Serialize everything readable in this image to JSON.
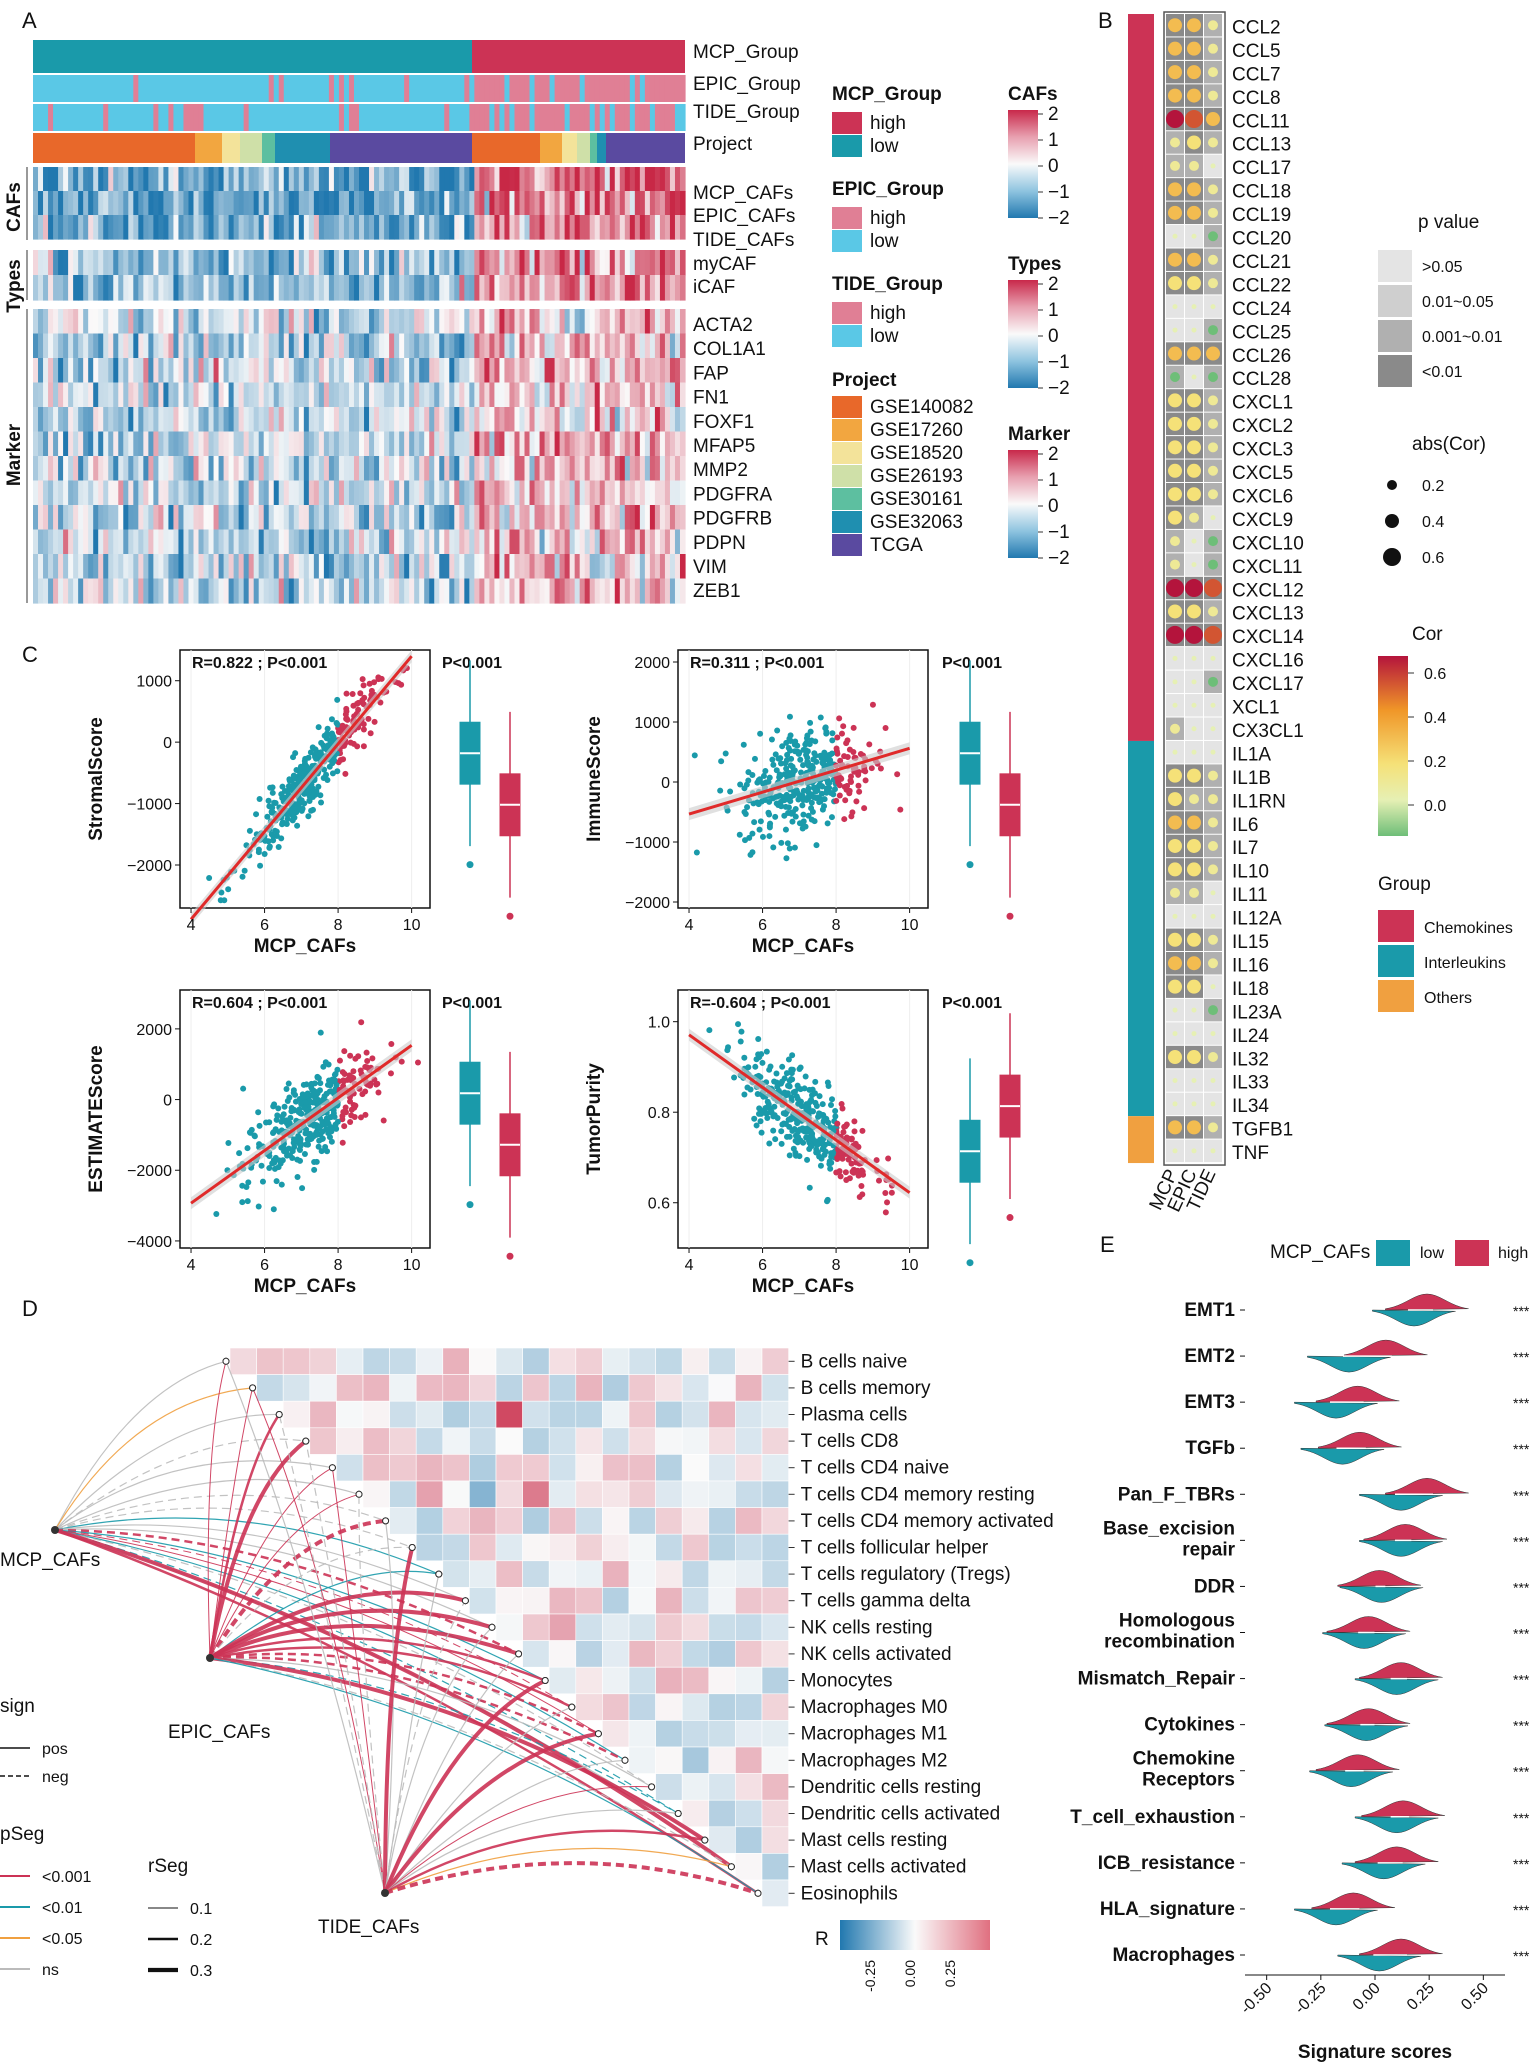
{
  "panels": {
    "a": "A",
    "b": "B",
    "c": "C",
    "d": "D",
    "e": "E"
  },
  "colors": {
    "high": "#cc3355",
    "low": "#1a9aaa",
    "light_high": "#e07f95",
    "light_low": "#5ac8e6",
    "grey": "#bbbbbb"
  },
  "heatmap_a": {
    "rows_top": [
      "MCP_Group",
      "EPIC_Group",
      "TIDE_Group",
      "Project"
    ],
    "group_caf": "CAFs",
    "rows_caf": [
      "MCP_CAFs",
      "EPIC_CAFs",
      "TIDE_CAFs"
    ],
    "group_types": "Types",
    "rows_types": [
      "myCAF",
      "iCAF"
    ],
    "group_marker": "Marker",
    "rows_marker": [
      "ACTA2",
      "COL1A1",
      "FAP",
      "FN1",
      "FOXF1",
      "MFAP5",
      "MMP2",
      "PDGFRA",
      "PDGFRB",
      "PDPN",
      "VIM",
      "ZEB1"
    ],
    "legend_mcp": {
      "title": "MCP_Group",
      "items": [
        "high",
        "low"
      ]
    },
    "legend_epic": {
      "title": "EPIC_Group",
      "items": [
        "high",
        "low"
      ]
    },
    "legend_tide": {
      "title": "TIDE_Group",
      "items": [
        "high",
        "low"
      ]
    },
    "legend_project": {
      "title": "Project",
      "items": [
        "GSE140082",
        "GSE17260",
        "GSE18520",
        "GSE26193",
        "GSE30161",
        "GSE32063",
        "TCGA"
      ],
      "colors": [
        "#e8682a",
        "#f2a640",
        "#f3e39a",
        "#cfe0a8",
        "#5dbfa0",
        "#1f8fb0",
        "#5a4aa0"
      ]
    },
    "scale_cafs": {
      "title": "CAFs",
      "ticks": [
        "2",
        "1",
        "0",
        "−1",
        "−2"
      ]
    },
    "scale_types": {
      "title": "Types",
      "ticks": [
        "2",
        "1",
        "0",
        "−1",
        "−2"
      ]
    },
    "scale_marker": {
      "title": "Marker",
      "ticks": [
        "2",
        "1",
        "0",
        "−1",
        "−2"
      ]
    }
  },
  "panel_b": {
    "genes": [
      "CCL2",
      "CCL5",
      "CCL7",
      "CCL8",
      "CCL11",
      "CCL13",
      "CCL17",
      "CCL18",
      "CCL19",
      "CCL20",
      "CCL21",
      "CCL22",
      "CCL24",
      "CCL25",
      "CCL26",
      "CCL28",
      "CXCL1",
      "CXCL2",
      "CXCL3",
      "CXCL5",
      "CXCL6",
      "CXCL9",
      "CXCL10",
      "CXCL11",
      "CXCL12",
      "CXCL13",
      "CXCL14",
      "CXCL16",
      "CXCL17",
      "XCL1",
      "CX3CL1",
      "IL1A",
      "IL1B",
      "IL1RN",
      "IL6",
      "IL7",
      "IL10",
      "IL11",
      "IL12A",
      "IL15",
      "IL16",
      "IL18",
      "IL23A",
      "IL24",
      "IL32",
      "IL33",
      "IL34",
      "TGFB1",
      "TNF"
    ],
    "columns": [
      "MCP",
      "EPIC",
      "TIDE"
    ],
    "cor": [
      [
        0.3,
        0.3,
        0.1
      ],
      [
        0.3,
        0.3,
        0.1
      ],
      [
        0.3,
        0.3,
        0.1
      ],
      [
        0.3,
        0.3,
        0.1
      ],
      [
        0.6,
        0.5,
        0.3
      ],
      [
        0.1,
        0.2,
        0.1
      ],
      [
        0.1,
        0.1,
        0.0
      ],
      [
        0.3,
        0.3,
        0.1
      ],
      [
        0.3,
        0.3,
        0.1
      ],
      [
        0.0,
        0.0,
        -0.1
      ],
      [
        0.3,
        0.3,
        0.1
      ],
      [
        0.2,
        0.2,
        0.1
      ],
      [
        0.0,
        0.0,
        0.0
      ],
      [
        0.0,
        0.0,
        -0.1
      ],
      [
        0.3,
        0.3,
        0.3
      ],
      [
        -0.1,
        0.0,
        -0.1
      ],
      [
        0.2,
        0.2,
        0.1
      ],
      [
        0.2,
        0.2,
        0.1
      ],
      [
        0.2,
        0.2,
        0.1
      ],
      [
        0.2,
        0.2,
        0.1
      ],
      [
        0.2,
        0.2,
        0.1
      ],
      [
        0.2,
        0.1,
        0.0
      ],
      [
        0.1,
        0.0,
        -0.1
      ],
      [
        0.1,
        0.0,
        -0.1
      ],
      [
        0.6,
        0.6,
        0.5
      ],
      [
        0.2,
        0.2,
        0.1
      ],
      [
        0.6,
        0.6,
        0.5
      ],
      [
        0.0,
        0.0,
        0.0
      ],
      [
        0.0,
        0.0,
        -0.1
      ],
      [
        0.0,
        0.0,
        0.0
      ],
      [
        0.1,
        0.0,
        0.0
      ],
      [
        0.0,
        0.0,
        0.0
      ],
      [
        0.2,
        0.2,
        0.1
      ],
      [
        0.2,
        0.1,
        0.1
      ],
      [
        0.3,
        0.3,
        0.1
      ],
      [
        0.2,
        0.2,
        0.1
      ],
      [
        0.2,
        0.2,
        0.1
      ],
      [
        0.1,
        0.1,
        0.0
      ],
      [
        0.0,
        0.0,
        0.0
      ],
      [
        0.2,
        0.2,
        0.1
      ],
      [
        0.3,
        0.3,
        0.1
      ],
      [
        0.2,
        0.2,
        0.0
      ],
      [
        0.0,
        0.0,
        -0.1
      ],
      [
        0.0,
        0.0,
        0.0
      ],
      [
        0.2,
        0.2,
        0.1
      ],
      [
        0.0,
        0.0,
        0.0
      ],
      [
        0.0,
        0.0,
        0.0
      ],
      [
        0.3,
        0.3,
        0.1
      ],
      [
        0.0,
        0.0,
        0.0
      ]
    ],
    "groups": [
      {
        "name": "Chemokines",
        "count": 31,
        "color": "#cc3355"
      },
      {
        "name": "Interleukins",
        "count": 16,
        "color": "#1a9aaa"
      },
      {
        "name": "Others",
        "count": 2,
        "color": "#f0a040"
      }
    ],
    "legend_p": {
      "title": "p value",
      "items": [
        ">0.05",
        "0.01~0.05",
        "0.001~0.01",
        "<0.01"
      ]
    },
    "legend_abs": {
      "title": "abs(Cor)",
      "items": [
        "0.2",
        "0.4",
        "0.6"
      ]
    },
    "legend_cor": {
      "title": "Cor",
      "ticks": [
        "0.6",
        "0.4",
        "0.2",
        "0.0"
      ]
    },
    "legend_group": {
      "title": "Group",
      "items": [
        "Chemokines",
        "Interleukins",
        "Others"
      ]
    }
  },
  "panel_c": {
    "plots": [
      {
        "ylabel": "StromalScore",
        "xlabel": "MCP_CAFs",
        "stat": "R=0.822 ; P<0.001",
        "pbox": "P<0.001",
        "yticks": [
          "1000",
          "0",
          "−1000",
          "−2000"
        ],
        "xticks": [
          "4",
          "6",
          "8",
          "10"
        ]
      },
      {
        "ylabel": "ImmuneScore",
        "xlabel": "MCP_CAFs",
        "stat": "R=0.311 ; P<0.001",
        "pbox": "P<0.001",
        "yticks": [
          "2000",
          "1000",
          "0",
          "−1000",
          "−2000"
        ],
        "xticks": [
          "4",
          "6",
          "8",
          "10"
        ]
      },
      {
        "ylabel": "ESTIMATEScore",
        "xlabel": "MCP_CAFs",
        "stat": "R=0.604 ; P<0.001",
        "pbox": "P<0.001",
        "yticks": [
          "2000",
          "0",
          "−2000",
          "−4000"
        ],
        "xticks": [
          "4",
          "6",
          "8",
          "10"
        ]
      },
      {
        "ylabel": "TumorPurity",
        "xlabel": "MCP_CAFs",
        "stat": "R=-0.604 ; P<0.001",
        "pbox": "P<0.001",
        "yticks": [
          "1.0",
          "0.8",
          "0.6"
        ],
        "xticks": [
          "4",
          "6",
          "8",
          "10"
        ]
      }
    ]
  },
  "panel_d": {
    "cells": [
      "B cells naive",
      "B cells memory",
      "Plasma cells",
      "T cells CD8",
      "T cells CD4 naive",
      "T cells CD4 memory resting",
      "T cells CD4 memory activated",
      "T cells follicular helper",
      "T cells regulatory (Tregs)",
      "T cells gamma delta",
      "NK cells resting",
      "NK cells activated",
      "Monocytes",
      "Macrophages M0",
      "Macrophages M1",
      "Macrophages M2",
      "Dendritic cells resting",
      "Dendritic cells activated",
      "Mast cells resting",
      "Mast cells activated",
      "Eosinophils"
    ],
    "nodes": [
      "MCP_CAFs",
      "EPIC_CAFs",
      "TIDE_CAFs"
    ],
    "legend_sign": {
      "title": "sign",
      "items": [
        "pos",
        "neg"
      ]
    },
    "legend_pseg": {
      "title": "pSeg",
      "items": [
        "<0.001",
        "<0.01",
        "<0.05",
        "ns"
      ]
    },
    "legend_rseg": {
      "title": "rSeg",
      "items": [
        "0.1",
        "0.2",
        "0.3"
      ]
    },
    "legend_r": {
      "title": "R",
      "ticks": [
        "-0.25",
        "0.00",
        "0.25"
      ]
    }
  },
  "panel_e": {
    "legend": {
      "title": "MCP_CAFs",
      "items": [
        "low",
        "high"
      ]
    },
    "signatures": [
      "EMT1",
      "EMT2",
      "EMT3",
      "TGFb",
      "Pan_F_TBRs",
      "Base_excision repair",
      "DDR",
      "Homologous recombination",
      "Mismatch_Repair",
      "Cytokines",
      "Chemokine Receptors",
      "T_cell_exhaustion",
      "ICB_resistance",
      "HLA_signature",
      "Macrophages"
    ],
    "low_centers": [
      0.18,
      -0.12,
      -0.18,
      -0.15,
      0.12,
      0.12,
      0.03,
      -0.05,
      0.1,
      -0.04,
      -0.11,
      0.1,
      0.04,
      -0.18,
      0.02
    ],
    "high_centers": [
      0.24,
      0.05,
      -0.08,
      -0.07,
      0.24,
      0.14,
      0.02,
      -0.03,
      0.12,
      -0.03,
      -0.08,
      0.13,
      0.1,
      -0.1,
      0.12
    ],
    "sig": "***",
    "xlabel": "Signature scores",
    "xticks": [
      "-0.50",
      "-0.25",
      "0.00",
      "0.25",
      "0.50"
    ]
  }
}
